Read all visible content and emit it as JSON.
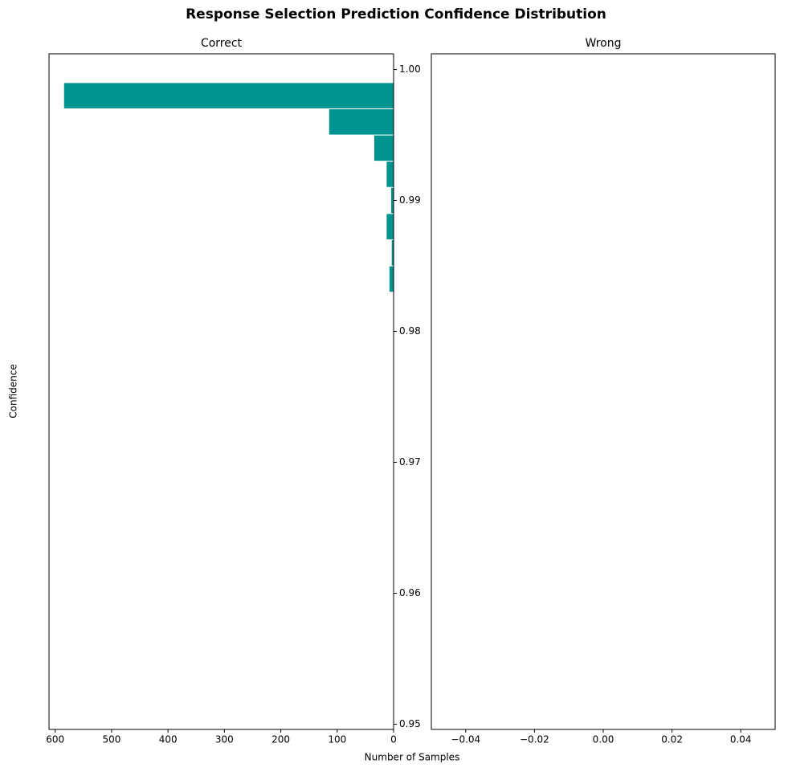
{
  "figure": {
    "title": "Response Selection Prediction Confidence Distribution",
    "xlabel": "Number of Samples",
    "ylabel": "Confidence"
  },
  "chart_data": [
    {
      "type": "histogram",
      "orientation": "horizontal",
      "title": "Correct",
      "color": "#009490",
      "edgecolor": "#ffffff",
      "bins": [
        0.953,
        0.955,
        0.957,
        0.959,
        0.961,
        0.963,
        0.965,
        0.967,
        0.969,
        0.971,
        0.973,
        0.975,
        0.977,
        0.979,
        0.981,
        0.983,
        0.985,
        0.987,
        0.989,
        0.991,
        0.993,
        0.995,
        0.997,
        0.999
      ],
      "values": [
        0,
        0,
        0,
        0,
        0,
        0,
        0,
        0,
        0,
        1,
        0,
        0,
        1,
        1,
        0,
        8,
        4,
        13,
        5,
        13,
        35,
        115,
        585
      ],
      "xlim": [
        611,
        0
      ],
      "xticks": [
        600,
        500,
        400,
        300,
        200,
        100,
        0
      ],
      "ylim": [
        0.9496,
        1.0012
      ],
      "yticks": [
        0.95,
        0.96,
        0.97,
        0.98,
        0.99,
        {
          "value": 1.0,
          "label": "1.00"
        }
      ]
    },
    {
      "type": "histogram",
      "orientation": "horizontal",
      "title": "Wrong",
      "xlim": [
        -0.05,
        0.05
      ],
      "xticks": [
        {
          "value": -0.04,
          "label": "−0.04"
        },
        {
          "value": -0.02,
          "label": "−0.02"
        },
        {
          "value": 0,
          "label": "0.00"
        },
        0.02,
        0.04
      ],
      "ylim": [
        0.9496,
        1.0012
      ]
    }
  ]
}
